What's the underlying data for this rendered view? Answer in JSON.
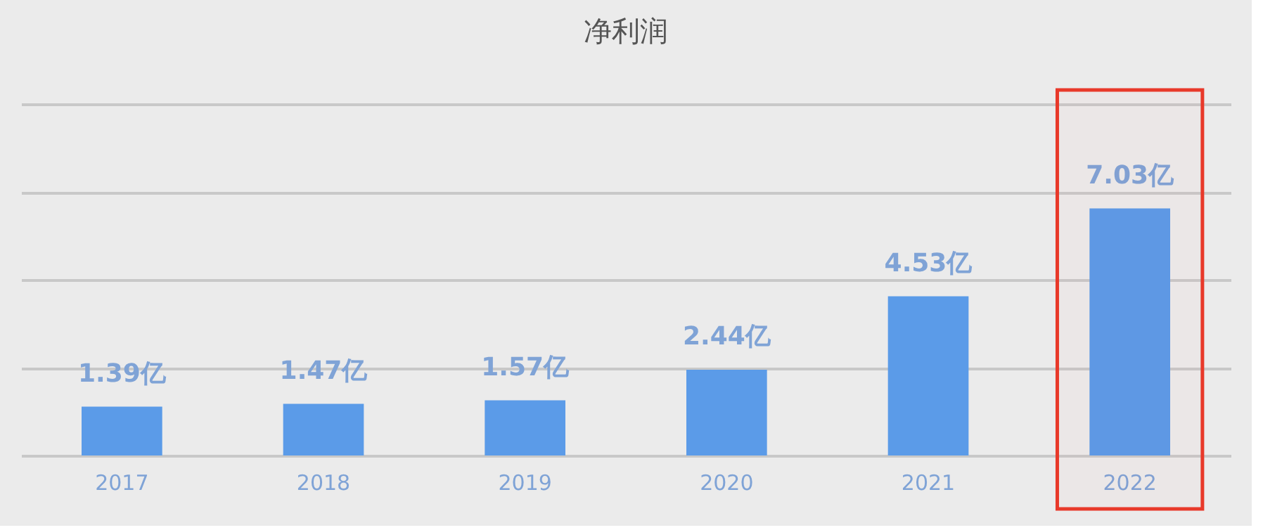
{
  "chart_data": {
    "type": "bar",
    "title": "净利润",
    "categories": [
      "2017",
      "2018",
      "2019",
      "2020",
      "2021",
      "2022"
    ],
    "values": [
      1.39,
      1.47,
      1.57,
      2.44,
      4.53,
      7.03
    ],
    "value_labels": [
      "1.39亿",
      "1.47亿",
      "1.57亿",
      "2.44亿",
      "4.53亿",
      "7.03亿"
    ],
    "color": "#5b9be8",
    "ylim": [
      0,
      10
    ],
    "yticks": [
      0,
      2.5,
      5,
      7.5,
      10
    ],
    "grid": "y",
    "tick_labels": "x",
    "bands": [
      {
        "axis": "x",
        "from": "2022",
        "to": "2022",
        "color": "#e8392a"
      }
    ]
  }
}
